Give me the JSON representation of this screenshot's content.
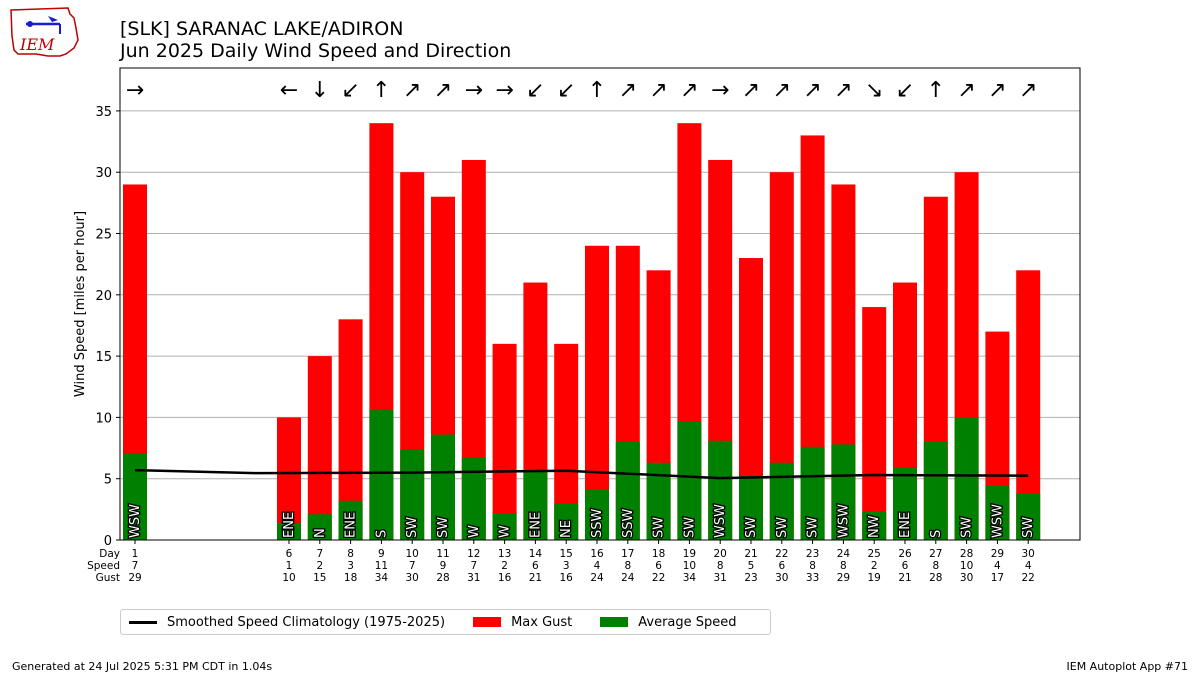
{
  "header": {
    "title_line1": "[SLK] SARANAC LAKE/ADIRON",
    "title_line2": "Jun 2025 Daily Wind Speed and Direction",
    "logo_text": "IEM"
  },
  "footer": {
    "left": "Generated at 24 Jul 2025 5:31 PM CDT in 1.04s",
    "right": "IEM Autoplot App #71"
  },
  "legend": {
    "clim_label": "Smoothed Speed Climatology (1975-2025)",
    "gust_label": "Max Gust",
    "avg_label": "Average Speed"
  },
  "colors": {
    "gust": "#ff0000",
    "avg": "#008000",
    "clim": "#000000",
    "grid": "#b0b0b0"
  },
  "chart_data": {
    "type": "bar",
    "ylabel": "Wind Speed [miles per hour]",
    "ylim": [
      0,
      38.5
    ],
    "yticks": [
      0,
      5,
      10,
      15,
      20,
      25,
      30,
      35
    ],
    "row_labels": [
      "Day",
      "Speed",
      "Gust"
    ],
    "days": [
      1,
      6,
      7,
      8,
      9,
      10,
      11,
      12,
      13,
      14,
      15,
      16,
      17,
      18,
      19,
      20,
      21,
      22,
      23,
      24,
      25,
      26,
      27,
      28,
      29,
      30
    ],
    "speed_labels": [
      7,
      1,
      2,
      3,
      11,
      7,
      9,
      7,
      2,
      6,
      3,
      4,
      8,
      6,
      10,
      8,
      5,
      6,
      8,
      8,
      2,
      6,
      8,
      10,
      4,
      4
    ],
    "avg_speed": [
      7.1,
      1.4,
      2.1,
      3.2,
      10.6,
      7.4,
      8.6,
      6.7,
      2.2,
      5.7,
      3.0,
      4.1,
      8.0,
      6.3,
      9.7,
      8.1,
      5.3,
      6.3,
      7.6,
      7.8,
      2.3,
      5.9,
      8.0,
      10.0,
      4.4,
      3.8
    ],
    "gust": [
      29,
      10,
      15,
      18,
      34,
      30,
      28,
      31,
      16,
      21,
      16,
      24,
      24,
      22,
      34,
      31,
      23,
      30,
      33,
      29,
      19,
      21,
      28,
      30,
      17,
      22
    ],
    "dir_labels": [
      "WSW",
      "ENE",
      "N",
      "ENE",
      "S",
      "SW",
      "SW",
      "W",
      "W",
      "ENE",
      "NE",
      "SSW",
      "SSW",
      "SW",
      "SW",
      "WSW",
      "SW",
      "SW",
      "SW",
      "WSW",
      "NW",
      "ENE",
      "S",
      "SW",
      "WSW",
      "SW"
    ],
    "arrows": [
      "→",
      "←",
      "↓",
      "↙",
      "↑",
      "↗",
      "↗",
      "→",
      "→",
      "↙",
      "↙",
      "↑",
      "↗",
      "↗",
      "↗",
      "→",
      "↗",
      "↗",
      "↗",
      "↗",
      "↘",
      "↙",
      "↑",
      "↗",
      "↗",
      "↗"
    ],
    "clim_days": [
      1,
      5,
      10,
      15,
      20,
      25,
      30
    ],
    "clim_values": [
      5.7,
      5.45,
      5.5,
      5.65,
      5.05,
      5.3,
      5.25
    ]
  }
}
